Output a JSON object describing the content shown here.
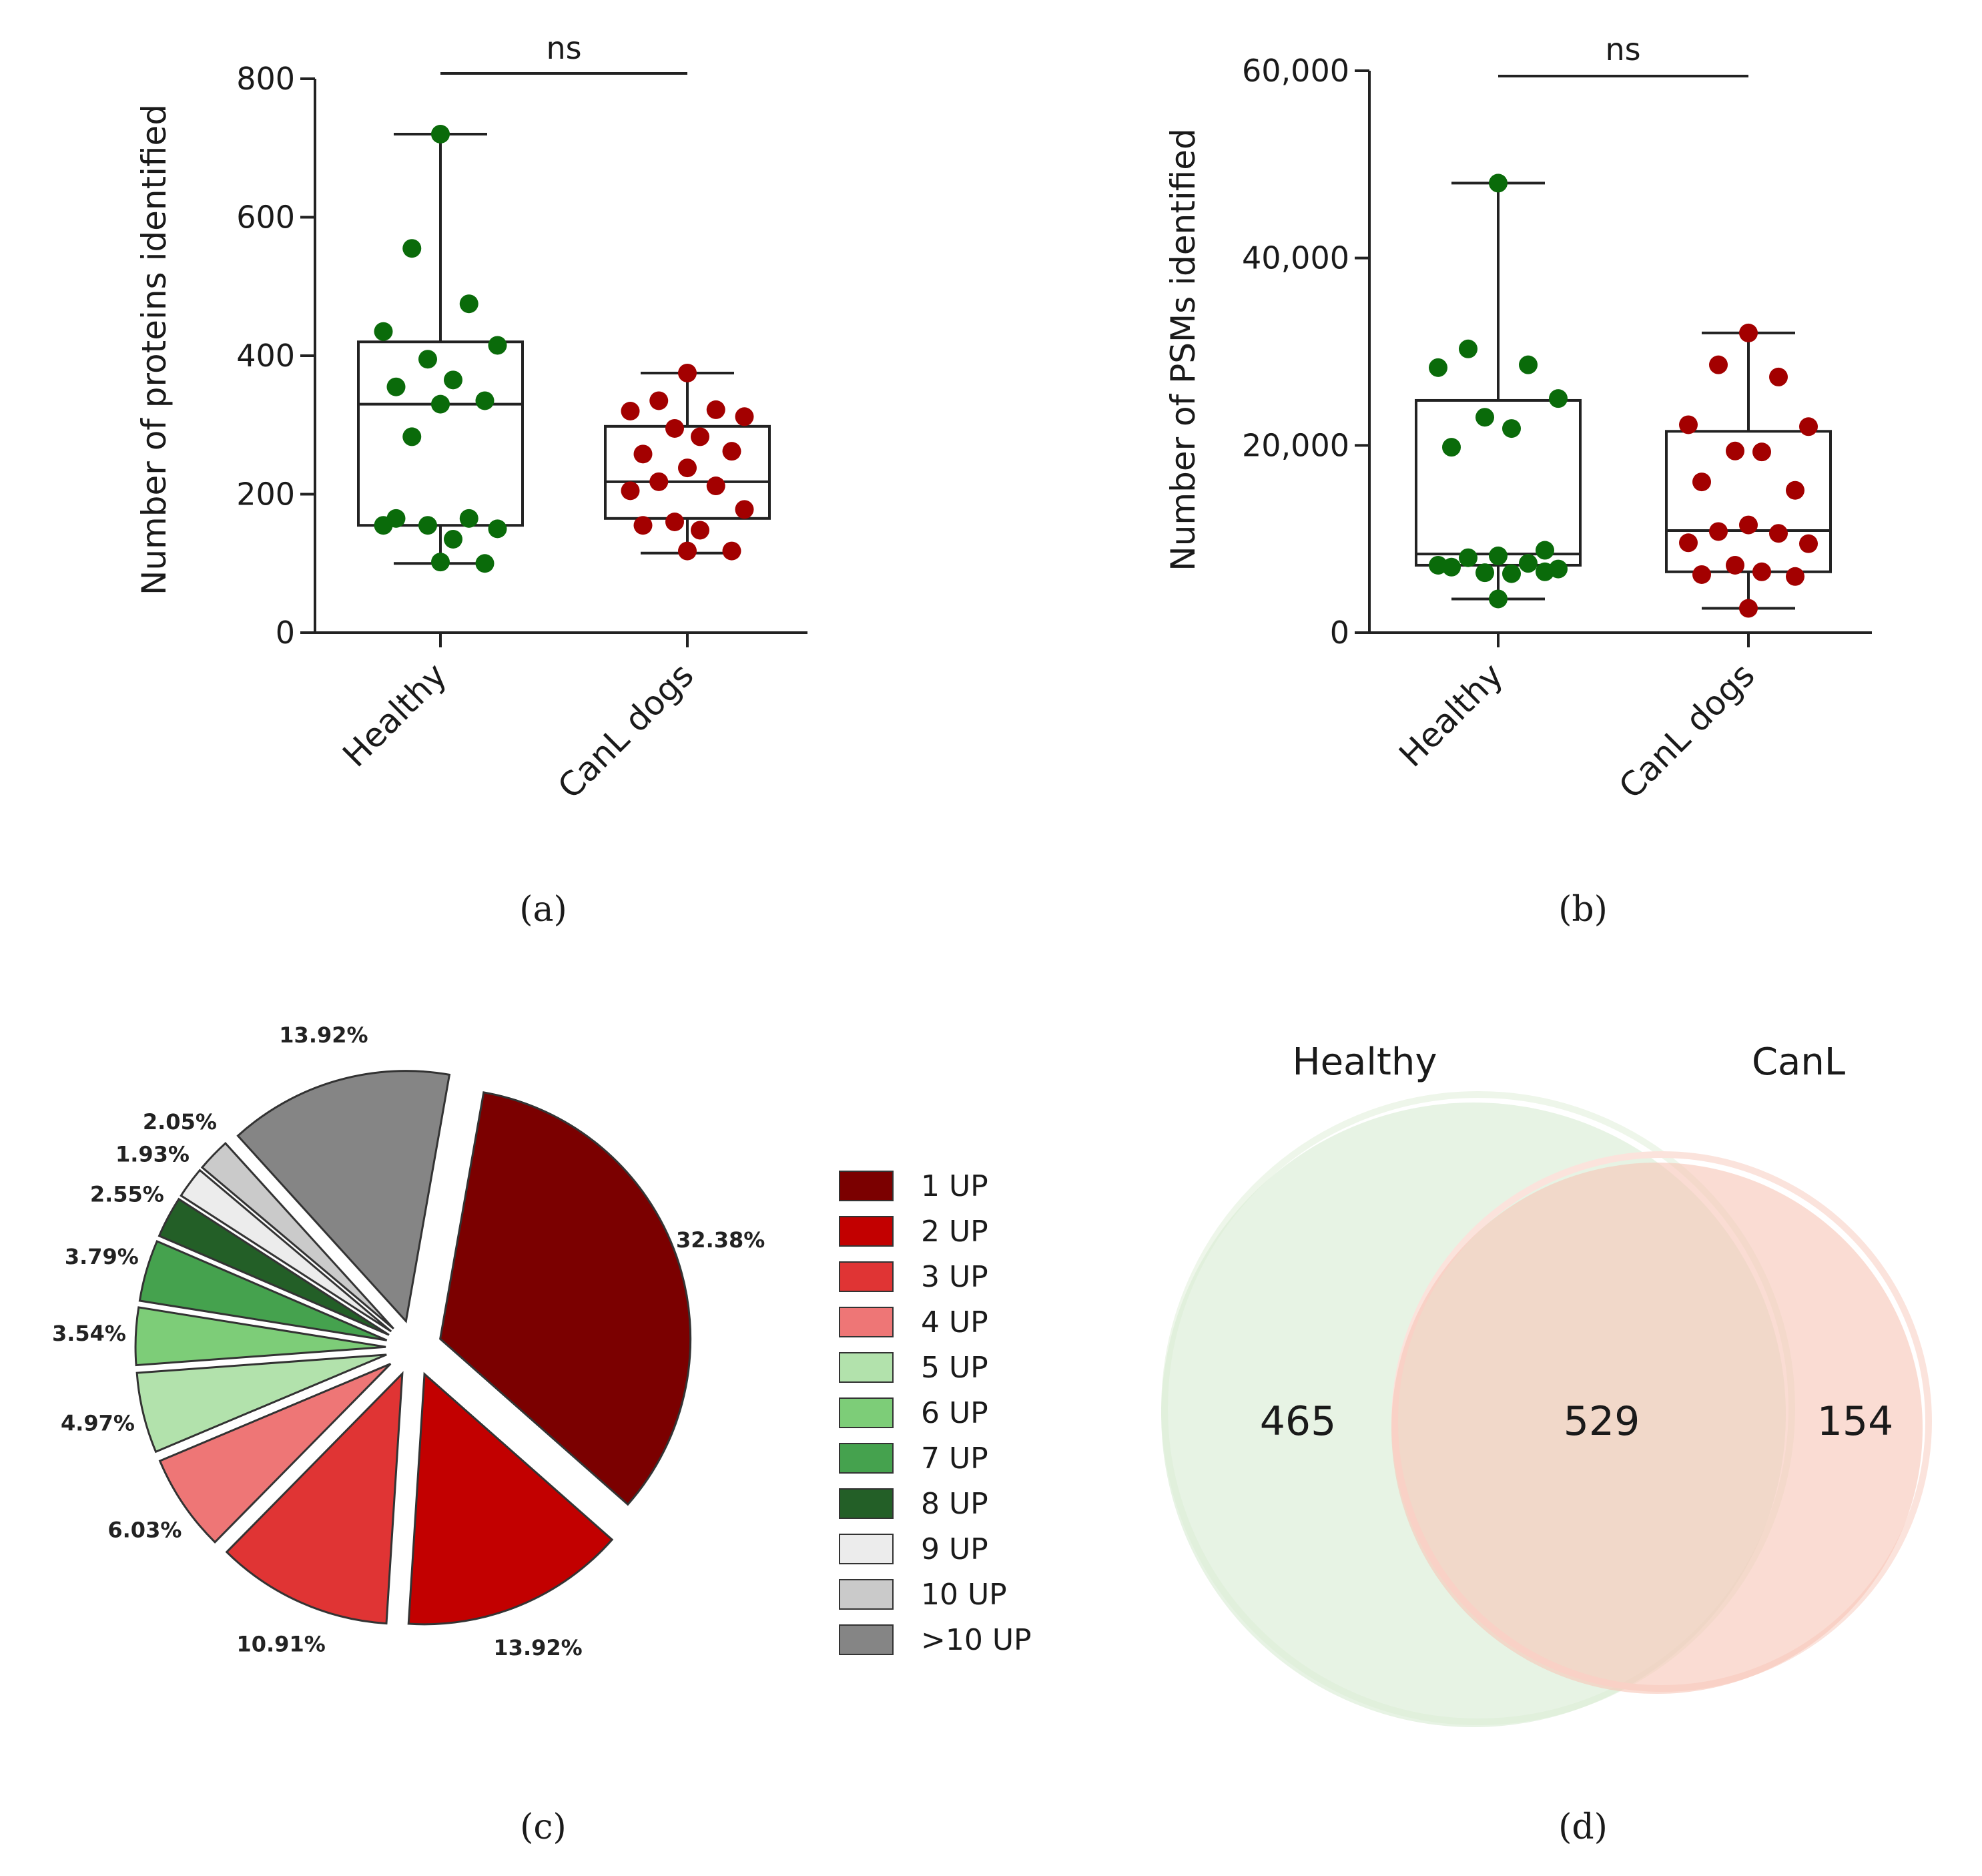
{
  "captions": {
    "a": "(a)",
    "b": "(b)",
    "c": "(c)",
    "d": "(d)"
  },
  "chart_data": [
    {
      "id": "a",
      "type": "box",
      "ylabel": "Number of proteins identified",
      "ylim": [
        0,
        800
      ],
      "yticks": [
        0,
        200,
        400,
        600,
        800
      ],
      "yticklabels": [
        "0",
        "200",
        "400",
        "600",
        "800"
      ],
      "categories": [
        "Healthy",
        "CanL dogs"
      ],
      "significance": "ns",
      "series": [
        {
          "name": "Healthy",
          "color": "#0a6b0a",
          "whisker_low": 100,
          "q1": 155,
          "median": 330,
          "q3": 420,
          "whisker_high": 720,
          "points": [
            720,
            555,
            475,
            435,
            415,
            395,
            365,
            355,
            335,
            330,
            283,
            165,
            155,
            150,
            155,
            135,
            165,
            100,
            102
          ]
        },
        {
          "name": "CanL dogs",
          "color": "#a30000",
          "whisker_low": 115,
          "q1": 165,
          "median": 218,
          "q3": 298,
          "whisker_high": 375,
          "points": [
            375,
            335,
            322,
            320,
            312,
            295,
            283,
            258,
            262,
            238,
            218,
            212,
            205,
            178,
            160,
            148,
            155,
            118,
            118
          ]
        }
      ]
    },
    {
      "id": "b",
      "type": "box",
      "ylabel": "Number of PSMs identified",
      "ylim": [
        0,
        60000
      ],
      "yticks": [
        0,
        20000,
        40000,
        60000
      ],
      "yticklabels": [
        "0",
        "20,000",
        "40,000",
        "60,000"
      ],
      "categories": [
        "Healthy",
        "CanL dogs"
      ],
      "significance": "ns",
      "series": [
        {
          "name": "Healthy",
          "color": "#0a6b0a",
          "whisker_low": 3600,
          "q1": 7200,
          "median": 8400,
          "q3": 24800,
          "whisker_high": 48000,
          "points": [
            48000,
            30300,
            28600,
            28300,
            25000,
            23000,
            21800,
            19800,
            8800,
            8200,
            8000,
            7400,
            7200,
            6800,
            6400,
            6300,
            7000,
            6500,
            3600
          ]
        },
        {
          "name": "CanL dogs",
          "color": "#a30000",
          "whisker_low": 2600,
          "q1": 6500,
          "median": 10900,
          "q3": 21500,
          "whisker_high": 32000,
          "points": [
            32000,
            28600,
            27300,
            22200,
            22000,
            19400,
            19300,
            16100,
            15200,
            11500,
            10800,
            10600,
            9600,
            9500,
            7200,
            6500,
            6200,
            6000,
            2600
          ]
        }
      ]
    },
    {
      "id": "c",
      "type": "pie",
      "labels": [
        "1 UP",
        "2 UP",
        "3 UP",
        "4 UP",
        "5 UP",
        "6 UP",
        "7 UP",
        "8 UP",
        "9 UP",
        "10 UP",
        ">10 UP"
      ],
      "values": [
        32.38,
        13.92,
        10.91,
        6.03,
        4.97,
        3.54,
        3.79,
        2.55,
        1.93,
        2.05,
        13.92
      ],
      "value_labels": [
        "32.38%",
        "13.92%",
        "10.91%",
        "6.03%",
        "4.97%",
        "3.54%",
        "3.79%",
        "2.55%",
        "1.93%",
        "2.05%",
        "13.92%"
      ],
      "colors": [
        "#7b0000",
        "#c20000",
        "#e03434",
        "#ee7676",
        "#b2e2ac",
        "#7dcd78",
        "#45a24e",
        "#235f27",
        "#ececec",
        "#cacaca",
        "#858585"
      ],
      "legend_position": "right"
    },
    {
      "id": "d",
      "type": "venn",
      "sets": [
        "Healthy",
        "CanL"
      ],
      "colors": [
        "#d9ecd3",
        "#f7c6b8"
      ],
      "only_a": 465,
      "intersection": 529,
      "only_b": 154
    }
  ]
}
